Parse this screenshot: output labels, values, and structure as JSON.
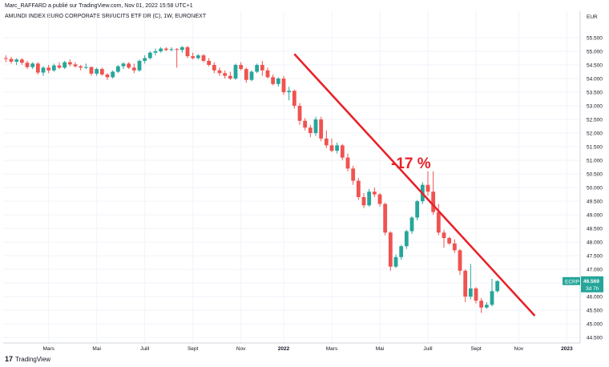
{
  "header": {
    "publish_line": "Marc_RAFFARD a publié sur TradingView.com, Nov 01, 2022 15:58 UTC+1",
    "symbol_line": "AMUNDI INDEX EURO CORPORATE SRI/UCITS ETF DR (C), 1W, EURONEXT"
  },
  "brand": {
    "mark": "17",
    "label": "TradingView"
  },
  "price_tag": {
    "symbol": "ECRP",
    "price": "46.569",
    "countdown": "3d 7h",
    "color": "#26a69a"
  },
  "annotation": {
    "text": "-17 %",
    "color": "#e8222a"
  },
  "colors": {
    "up": "#26a69a",
    "down": "#ef5350",
    "trendline": "#e8222a",
    "grid": "#f0f3fa"
  },
  "chart_data": {
    "type": "candlestick",
    "currency": "EUR",
    "x_tick_labels": [
      "Mars",
      "Mai",
      "Juill",
      "Sept",
      "Nov",
      "2022",
      "Mars",
      "Mai",
      "Juill",
      "Sept",
      "Nov",
      "2023"
    ],
    "x_tick_bars": [
      8,
      17,
      26,
      35,
      44,
      52,
      61,
      70,
      79,
      88,
      96,
      105
    ],
    "y_ticks": [
      "44.500",
      "45.000",
      "45.500",
      "46.000",
      "46.500",
      "47.000",
      "47.500",
      "48.000",
      "48.500",
      "49.000",
      "49.500",
      "50.000",
      "50.500",
      "51.000",
      "51.500",
      "52.000",
      "52.500",
      "53.000",
      "53.500",
      "54.000",
      "54.500",
      "55.000",
      "55.500"
    ],
    "y_range": [
      44.3,
      56.0
    ],
    "bar_count": 108,
    "candles": [
      {
        "o": 54.75,
        "h": 54.85,
        "l": 54.6,
        "c": 54.72
      },
      {
        "o": 54.72,
        "h": 54.8,
        "l": 54.55,
        "c": 54.62
      },
      {
        "o": 54.62,
        "h": 54.75,
        "l": 54.5,
        "c": 54.7
      },
      {
        "o": 54.7,
        "h": 54.75,
        "l": 54.5,
        "c": 54.58
      },
      {
        "o": 54.58,
        "h": 54.65,
        "l": 54.35,
        "c": 54.42
      },
      {
        "o": 54.42,
        "h": 54.6,
        "l": 54.35,
        "c": 54.55
      },
      {
        "o": 54.55,
        "h": 54.6,
        "l": 54.15,
        "c": 54.22
      },
      {
        "o": 54.22,
        "h": 54.45,
        "l": 54.1,
        "c": 54.4
      },
      {
        "o": 54.4,
        "h": 54.5,
        "l": 54.2,
        "c": 54.3
      },
      {
        "o": 54.3,
        "h": 54.55,
        "l": 54.25,
        "c": 54.48
      },
      {
        "o": 54.48,
        "h": 54.6,
        "l": 54.35,
        "c": 54.4
      },
      {
        "o": 54.4,
        "h": 54.65,
        "l": 54.35,
        "c": 54.6
      },
      {
        "o": 54.6,
        "h": 54.7,
        "l": 54.45,
        "c": 54.52
      },
      {
        "o": 54.52,
        "h": 54.6,
        "l": 54.4,
        "c": 54.45
      },
      {
        "o": 54.45,
        "h": 54.5,
        "l": 54.3,
        "c": 54.4
      },
      {
        "o": 54.4,
        "h": 54.55,
        "l": 54.35,
        "c": 54.42
      },
      {
        "o": 54.42,
        "h": 54.45,
        "l": 54.1,
        "c": 54.18
      },
      {
        "o": 54.18,
        "h": 54.4,
        "l": 54.1,
        "c": 54.35
      },
      {
        "o": 54.35,
        "h": 54.4,
        "l": 54.1,
        "c": 54.15
      },
      {
        "o": 54.15,
        "h": 54.2,
        "l": 53.95,
        "c": 54.05
      },
      {
        "o": 54.05,
        "h": 54.3,
        "l": 54.0,
        "c": 54.25
      },
      {
        "o": 54.25,
        "h": 54.5,
        "l": 54.2,
        "c": 54.45
      },
      {
        "o": 54.45,
        "h": 54.6,
        "l": 54.35,
        "c": 54.55
      },
      {
        "o": 54.55,
        "h": 54.6,
        "l": 54.35,
        "c": 54.4
      },
      {
        "o": 54.4,
        "h": 54.55,
        "l": 54.2,
        "c": 54.3
      },
      {
        "o": 54.3,
        "h": 54.7,
        "l": 54.25,
        "c": 54.65
      },
      {
        "o": 54.65,
        "h": 54.85,
        "l": 54.55,
        "c": 54.75
      },
      {
        "o": 54.75,
        "h": 55.0,
        "l": 54.7,
        "c": 54.95
      },
      {
        "o": 54.95,
        "h": 55.1,
        "l": 54.85,
        "c": 55.0
      },
      {
        "o": 55.0,
        "h": 55.15,
        "l": 54.95,
        "c": 55.1
      },
      {
        "o": 55.1,
        "h": 55.15,
        "l": 55.0,
        "c": 55.05
      },
      {
        "o": 55.05,
        "h": 55.15,
        "l": 55.0,
        "c": 55.08
      },
      {
        "o": 55.08,
        "h": 55.12,
        "l": 54.4,
        "c": 55.05
      },
      {
        "o": 55.05,
        "h": 55.2,
        "l": 54.95,
        "c": 55.15
      },
      {
        "o": 55.15,
        "h": 55.2,
        "l": 54.75,
        "c": 54.82
      },
      {
        "o": 54.82,
        "h": 54.95,
        "l": 54.7,
        "c": 54.75
      },
      {
        "o": 54.75,
        "h": 54.9,
        "l": 54.7,
        "c": 54.85
      },
      {
        "o": 54.85,
        "h": 54.9,
        "l": 54.6,
        "c": 54.65
      },
      {
        "o": 54.65,
        "h": 54.75,
        "l": 54.45,
        "c": 54.5
      },
      {
        "o": 54.5,
        "h": 54.6,
        "l": 54.2,
        "c": 54.3
      },
      {
        "o": 54.3,
        "h": 54.4,
        "l": 54.1,
        "c": 54.2
      },
      {
        "o": 54.2,
        "h": 54.3,
        "l": 54.0,
        "c": 54.1
      },
      {
        "o": 54.1,
        "h": 54.25,
        "l": 53.95,
        "c": 54.0
      },
      {
        "o": 54.0,
        "h": 54.55,
        "l": 53.95,
        "c": 54.5
      },
      {
        "o": 54.5,
        "h": 54.6,
        "l": 54.3,
        "c": 54.35
      },
      {
        "o": 54.35,
        "h": 54.4,
        "l": 53.85,
        "c": 53.95
      },
      {
        "o": 53.95,
        "h": 54.3,
        "l": 53.9,
        "c": 54.25
      },
      {
        "o": 54.25,
        "h": 54.55,
        "l": 54.2,
        "c": 54.5
      },
      {
        "o": 54.5,
        "h": 54.65,
        "l": 54.1,
        "c": 54.3
      },
      {
        "o": 54.3,
        "h": 54.4,
        "l": 54.0,
        "c": 54.05
      },
      {
        "o": 54.05,
        "h": 54.15,
        "l": 53.75,
        "c": 53.8
      },
      {
        "o": 53.8,
        "h": 54.05,
        "l": 53.7,
        "c": 54.0
      },
      {
        "o": 54.0,
        "h": 54.1,
        "l": 53.4,
        "c": 53.5
      },
      {
        "o": 53.5,
        "h": 53.7,
        "l": 53.2,
        "c": 53.55
      },
      {
        "o": 53.55,
        "h": 53.6,
        "l": 52.9,
        "c": 53.0
      },
      {
        "o": 53.0,
        "h": 53.1,
        "l": 52.3,
        "c": 52.45
      },
      {
        "o": 52.45,
        "h": 52.55,
        "l": 52.1,
        "c": 52.2
      },
      {
        "o": 52.2,
        "h": 52.3,
        "l": 51.85,
        "c": 52.0
      },
      {
        "o": 52.0,
        "h": 52.6,
        "l": 51.9,
        "c": 52.5
      },
      {
        "o": 52.5,
        "h": 52.6,
        "l": 51.7,
        "c": 51.8
      },
      {
        "o": 51.8,
        "h": 52.1,
        "l": 51.45,
        "c": 51.55
      },
      {
        "o": 51.55,
        "h": 51.8,
        "l": 51.3,
        "c": 51.35
      },
      {
        "o": 51.35,
        "h": 51.65,
        "l": 51.25,
        "c": 51.55
      },
      {
        "o": 51.55,
        "h": 51.6,
        "l": 51.0,
        "c": 51.1
      },
      {
        "o": 51.1,
        "h": 51.25,
        "l": 50.6,
        "c": 50.7
      },
      {
        "o": 50.7,
        "h": 50.8,
        "l": 50.1,
        "c": 50.25
      },
      {
        "o": 50.25,
        "h": 50.35,
        "l": 49.55,
        "c": 49.65
      },
      {
        "o": 49.65,
        "h": 49.8,
        "l": 49.25,
        "c": 49.35
      },
      {
        "o": 49.35,
        "h": 49.95,
        "l": 49.3,
        "c": 49.85
      },
      {
        "o": 49.85,
        "h": 50.0,
        "l": 49.65,
        "c": 49.75
      },
      {
        "o": 49.75,
        "h": 49.8,
        "l": 49.3,
        "c": 49.4
      },
      {
        "o": 49.4,
        "h": 49.45,
        "l": 48.25,
        "c": 48.35
      },
      {
        "o": 48.35,
        "h": 48.4,
        "l": 46.95,
        "c": 47.1
      },
      {
        "o": 47.1,
        "h": 47.55,
        "l": 47.05,
        "c": 47.45
      },
      {
        "o": 47.45,
        "h": 47.9,
        "l": 47.35,
        "c": 47.85
      },
      {
        "o": 47.85,
        "h": 48.45,
        "l": 47.75,
        "c": 48.4
      },
      {
        "o": 48.4,
        "h": 48.95,
        "l": 48.3,
        "c": 48.9
      },
      {
        "o": 48.9,
        "h": 49.55,
        "l": 48.8,
        "c": 49.5
      },
      {
        "o": 49.5,
        "h": 50.2,
        "l": 49.4,
        "c": 50.1
      },
      {
        "o": 50.1,
        "h": 50.6,
        "l": 49.7,
        "c": 49.85
      },
      {
        "o": 49.85,
        "h": 50.6,
        "l": 49.0,
        "c": 49.1
      },
      {
        "o": 49.1,
        "h": 49.4,
        "l": 48.25,
        "c": 48.35
      },
      {
        "o": 48.35,
        "h": 48.45,
        "l": 47.8,
        "c": 48.15
      },
      {
        "o": 48.15,
        "h": 48.2,
        "l": 47.9,
        "c": 47.95
      },
      {
        "o": 47.95,
        "h": 48.1,
        "l": 47.6,
        "c": 47.7
      },
      {
        "o": 47.7,
        "h": 47.75,
        "l": 46.8,
        "c": 46.95
      },
      {
        "o": 46.95,
        "h": 47.0,
        "l": 45.8,
        "c": 46.0
      },
      {
        "o": 46.0,
        "h": 47.2,
        "l": 45.9,
        "c": 46.3
      },
      {
        "o": 46.3,
        "h": 46.35,
        "l": 45.75,
        "c": 45.85
      },
      {
        "o": 45.85,
        "h": 45.95,
        "l": 45.4,
        "c": 45.6
      },
      {
        "o": 45.6,
        "h": 45.8,
        "l": 45.55,
        "c": 45.7
      },
      {
        "o": 45.7,
        "h": 46.65,
        "l": 45.65,
        "c": 46.2
      },
      {
        "o": 46.2,
        "h": 46.6,
        "l": 46.15,
        "c": 46.57
      }
    ],
    "trendline": {
      "from": {
        "bar": 54,
        "price": 54.9
      },
      "to": {
        "bar": 99,
        "price": 45.3
      }
    }
  }
}
